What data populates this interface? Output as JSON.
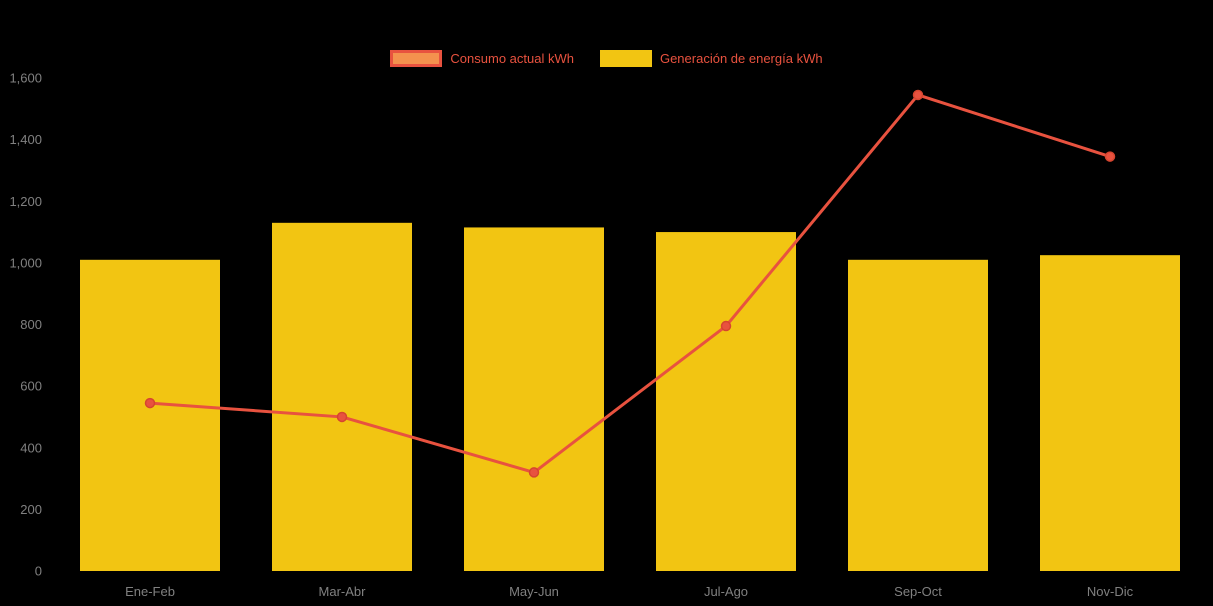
{
  "chart_data": {
    "type": "bar",
    "subtype": "combo-bar-line",
    "title": "",
    "xlabel": "",
    "ylabel": "",
    "categories": [
      "Ene-Feb",
      "Mar-Abr",
      "May-Jun",
      "Jul-Ago",
      "Sep-Oct",
      "Nov-Dic"
    ],
    "series": [
      {
        "name": "Consumo actual kWh",
        "type": "line",
        "color": "#e8523f",
        "marker_color": "#e8523f",
        "values": [
          545,
          500,
          320,
          795,
          1545,
          1345
        ]
      },
      {
        "name": "Generación de energía kWh",
        "type": "bar",
        "color": "#f2c512",
        "values": [
          1010,
          1130,
          1115,
          1100,
          1010,
          1025
        ]
      }
    ],
    "ylim": [
      0,
      1600
    ],
    "yticks": [
      0,
      200,
      400,
      600,
      800,
      1000,
      1200,
      1400,
      1600
    ],
    "ytick_labels": [
      "0",
      "200",
      "400",
      "600",
      "800",
      "1,000",
      "1,200",
      "1,400",
      "1,600"
    ],
    "legend_position": "top",
    "grid": false,
    "background_color": "#000000",
    "tick_label_color": "#808080"
  },
  "legend": {
    "items": [
      {
        "label": "Consumo actual kWh"
      },
      {
        "label": "Generación de energía kWh"
      }
    ]
  }
}
